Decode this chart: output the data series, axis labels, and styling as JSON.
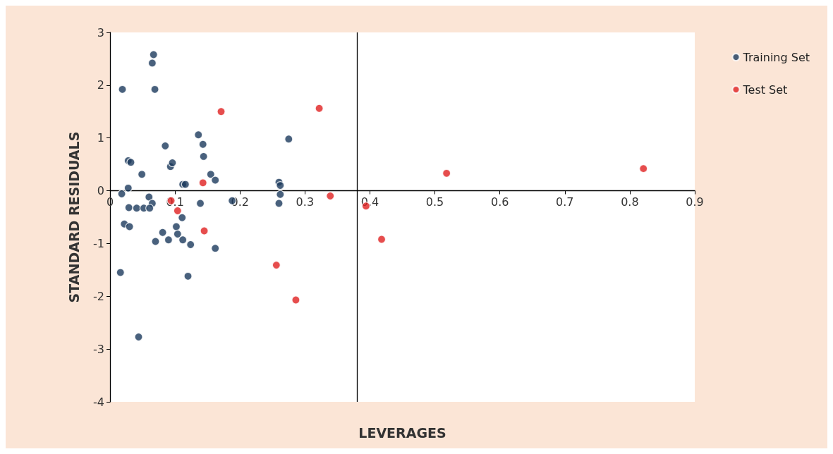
{
  "chart_data": {
    "type": "scatter",
    "xlabel": "LEVERAGES",
    "ylabel": "STANDARD RESIDUALS",
    "xlim": [
      0,
      0.9
    ],
    "xticks": [
      0,
      0.1,
      0.2,
      0.3,
      0.4,
      0.5,
      0.6,
      0.7,
      0.8,
      0.9
    ],
    "ylim": [
      -4,
      3
    ],
    "yticks": [
      -4,
      -3,
      -2,
      -1,
      0,
      1,
      2,
      3
    ],
    "grid": false,
    "legend": "top right",
    "marker": "circle",
    "ref_lines": [
      {
        "axis": "x",
        "value": 0.38,
        "color": "#000000"
      }
    ],
    "series": [
      {
        "name": "Training Set",
        "color": "#1b3a5c",
        "x": [
          0.067,
          0.065,
          0.019,
          0.069,
          0.136,
          0.143,
          0.144,
          0.085,
          0.093,
          0.096,
          0.028,
          0.032,
          0.049,
          0.028,
          0.018,
          0.112,
          0.116,
          0.155,
          0.162,
          0.275,
          0.26,
          0.262,
          0.262,
          0.26,
          0.188,
          0.139,
          0.06,
          0.065,
          0.029,
          0.041,
          0.052,
          0.061,
          0.022,
          0.03,
          0.111,
          0.102,
          0.104,
          0.081,
          0.09,
          0.07,
          0.112,
          0.124,
          0.162,
          0.016,
          0.12,
          0.044
        ],
        "values": [
          2.58,
          2.42,
          1.92,
          1.92,
          1.06,
          0.88,
          0.65,
          0.85,
          0.46,
          0.53,
          0.57,
          0.54,
          0.31,
          0.05,
          -0.06,
          0.12,
          0.12,
          0.31,
          0.2,
          0.98,
          0.16,
          0.1,
          -0.07,
          -0.24,
          -0.19,
          -0.24,
          -0.12,
          -0.24,
          -0.32,
          -0.33,
          -0.33,
          -0.33,
          -0.63,
          -0.68,
          -0.51,
          -0.68,
          -0.82,
          -0.79,
          -0.93,
          -0.96,
          -0.93,
          -1.02,
          -1.09,
          -1.55,
          -1.62,
          -2.77
        ]
      },
      {
        "name": "Test Set",
        "color": "#e02020",
        "x": [
          0.171,
          0.322,
          0.143,
          0.094,
          0.104,
          0.145,
          0.256,
          0.286,
          0.339,
          0.394,
          0.418,
          0.518,
          0.821
        ],
        "values": [
          1.5,
          1.56,
          0.15,
          -0.19,
          -0.38,
          -0.76,
          -1.41,
          -2.07,
          -0.1,
          -0.29,
          -0.92,
          0.33,
          0.42
        ]
      }
    ]
  }
}
